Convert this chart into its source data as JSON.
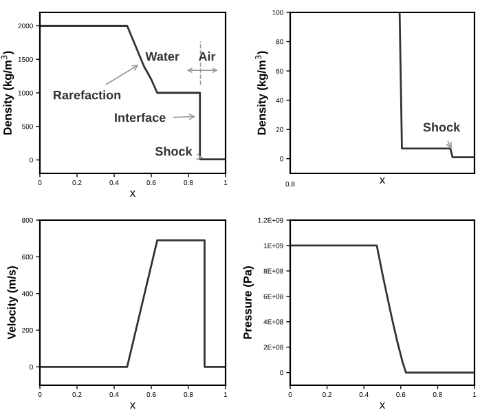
{
  "chart_data": [
    {
      "type": "line",
      "xlabel": "x",
      "ylabel": "Density (kg/m$^{3}$)",
      "xlim": [
        0,
        1
      ],
      "xticks": [
        0,
        0.2,
        0.4,
        0.6,
        0.8,
        1
      ],
      "ylim": [
        -200,
        2200
      ],
      "yticks": [
        0,
        500,
        1000,
        1500,
        2000
      ],
      "grid": false,
      "marker": "none",
      "line_style": "solid",
      "series": [
        {
          "color": "#333333",
          "x": [
            0,
            0.47,
            0.5,
            0.53,
            0.56,
            0.6,
            0.632,
            0.862,
            0.862,
            1
          ],
          "values": [
            2000,
            2000,
            1800,
            1600,
            1400,
            1200,
            1000,
            1000,
            10,
            10
          ]
        }
      ],
      "annotations": [
        "Water",
        "Air",
        {
          "text": "Rarefaction",
          "x": 0.55,
          "y": 1450
        },
        {
          "text": "Interface",
          "x": 0.86,
          "y": 650
        },
        {
          "text": "Shock",
          "x": 0.9,
          "y": 20
        }
      ]
    },
    {
      "type": "line",
      "xlabel": "x",
      "ylabel": "Density (kg/m$^{3}$)",
      "categories": [
        null,
        null,
        null,
        null,
        null,
        null,
        null,
        null,
        null,
        null,
        null,
        null,
        null,
        null,
        null,
        null,
        null,
        null,
        null,
        null,
        null,
        null,
        null,
        null,
        null,
        null,
        null,
        null,
        null,
        null,
        null,
        null,
        null,
        null,
        null,
        null,
        null,
        null,
        null,
        null,
        null,
        null,
        null,
        null,
        null,
        null,
        null,
        null,
        null,
        null,
        null,
        null,
        null,
        null,
        null,
        null,
        null,
        null,
        null,
        null,
        null,
        null,
        null,
        null,
        null,
        null,
        null,
        null,
        null,
        null,
        null,
        null,
        null,
        null,
        null,
        null,
        null,
        null,
        null,
        null
      ],
      "tick_labels": "y",
      "ylim": [
        -10,
        100
      ],
      "yticks": [
        0,
        20,
        40,
        60,
        80,
        100
      ],
      "grid": false,
      "marker": "none",
      "line_style": "solid",
      "series": [
        {
          "color": "#333333",
          "values": [
            null,
            null,
            null,
            null,
            null,
            null,
            null,
            null,
            null,
            null,
            null,
            null,
            null,
            null,
            null,
            null,
            null,
            null,
            null,
            null,
            null,
            null,
            null,
            null,
            null,
            null,
            null,
            null,
            null,
            null,
            null,
            null,
            null,
            null,
            null,
            null,
            null,
            null,
            null,
            null,
            null,
            null,
            null,
            null,
            null,
            null,
            null,
            100,
            7,
            7,
            7,
            7,
            7,
            7,
            7,
            7,
            7,
            7,
            7,
            7,
            7,
            7,
            7,
            7,
            7,
            7,
            7,
            7,
            7,
            7,
            1,
            1,
            1,
            1,
            1,
            1,
            1,
            1,
            1,
            1
          ]
        }
      ],
      "annotations": [
        "Shock",
        "0.8"
      ]
    },
    {
      "type": "line",
      "xlabel": "x",
      "ylabel": "Velocity (m/s)",
      "xlim": [
        0,
        1
      ],
      "xticks": [
        0,
        0.2,
        0.4,
        0.6,
        0.8,
        1
      ],
      "ylim": [
        -100,
        800
      ],
      "yticks": [
        0,
        200,
        400,
        600,
        800
      ],
      "grid": false,
      "marker": "none",
      "line_style": "solid",
      "series": [
        {
          "color": "#333333",
          "x": [
            0,
            0.47,
            0.632,
            0.887,
            0.887,
            1
          ],
          "values": [
            0,
            0,
            690,
            690,
            0,
            0
          ]
        }
      ]
    },
    {
      "type": "line",
      "xlabel": "x",
      "ylabel": "Pressure (Pa)",
      "xlim": [
        0,
        1
      ],
      "xticks": [
        0,
        0.2,
        0.4,
        0.6,
        0.8,
        1
      ],
      "ylim": [
        -100000000,
        1200000000
      ],
      "yticks": [
        0,
        {
          "value": 200000000,
          "label": "2E+08"
        },
        {
          "value": 400000000,
          "label": "4E+08"
        },
        {
          "value": 600000000,
          "label": "6E+08"
        },
        {
          "value": 800000000,
          "label": "8E+08"
        },
        {
          "value": 1000000000,
          "label": "1E+09"
        },
        {
          "value": 1200000000,
          "label": "1.2E+09"
        }
      ],
      "grid": false,
      "marker": "none",
      "line_style": "solid",
      "series": [
        {
          "color": "#333333",
          "x": [
            0,
            0.47,
            0.5,
            0.525,
            0.55,
            0.58,
            0.61,
            0.628,
            1
          ],
          "values": [
            1000000000,
            1000000000,
            780000000,
            610000000,
            440000000,
            250000000,
            80000000,
            0,
            0
          ]
        }
      ]
    }
  ]
}
